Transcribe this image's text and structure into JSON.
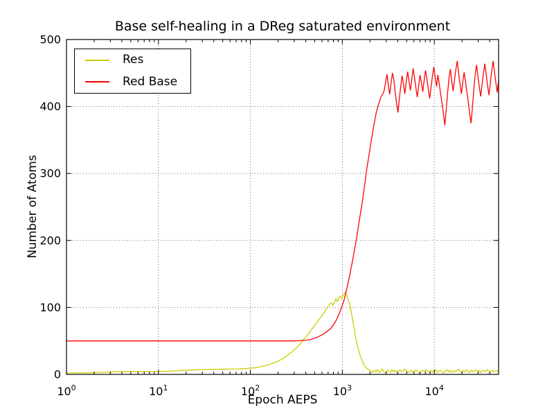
{
  "chart_data": {
    "type": "line",
    "title": "Base self-healing in a DReg saturated environment",
    "xlabel": "Epoch AEPS",
    "ylabel": "Number of Atoms",
    "x_scale": "log",
    "x_range": [
      1,
      50000
    ],
    "y_range": [
      0,
      500
    ],
    "grid": "dotted",
    "grid_color": "#555555",
    "axis_color": "#000000",
    "y_ticks": [
      0,
      100,
      200,
      300,
      400,
      500
    ],
    "y_tick_labels": [
      "0",
      "100",
      "200",
      "300",
      "400",
      "500"
    ],
    "x_ticks": [
      {
        "value": 1,
        "base": "10",
        "exp": "0"
      },
      {
        "value": 10,
        "base": "10",
        "exp": "1"
      },
      {
        "value": 100,
        "base": "10",
        "exp": "2"
      },
      {
        "value": 1000,
        "base": "10",
        "exp": "3"
      },
      {
        "value": 10000,
        "base": "10",
        "exp": "4"
      }
    ],
    "legend": {
      "position": "upper-left",
      "entries": [
        {
          "label": "Res",
          "color": "#cccc00"
        },
        {
          "label": "Red Base",
          "color": "#ff0000"
        }
      ]
    },
    "series": [
      {
        "name": "Res",
        "color": "#cccc00",
        "segments": [
          {
            "x": [
              1,
              1.5,
              2,
              2.6,
              3.3,
              4.2,
              5.5,
              7,
              9,
              12,
              15,
              19,
              24,
              30,
              38,
              47,
              58,
              72,
              88,
              100,
              115,
              130,
              150,
              170,
              195,
              220,
              250,
              285,
              320,
              360,
              400,
              440,
              480,
              520,
              560,
              600,
              640,
              680,
              720,
              760,
              790,
              820,
              850,
              880,
              910,
              950,
              990,
              1030,
              1070,
              1110,
              1150,
              1190,
              1230,
              1270,
              1310,
              1360,
              1410,
              1470,
              1530,
              1600,
              1680,
              1760,
              1850,
              1950
            ],
            "y": [
              2,
              2.2,
              2.6,
              3.2,
              3.8,
              4.1,
              4.2,
              4.2,
              4.3,
              4.6,
              5.2,
              6,
              6.8,
              7.4,
              7.6,
              7.7,
              7.9,
              8,
              8.6,
              9.2,
              10,
              11.5,
              13.5,
              16,
              19,
              23,
              28,
              34,
              40,
              48,
              56,
              63,
              70,
              76,
              82,
              88,
              93,
              99,
              104,
              107,
              103,
              108,
              113,
              109,
              114,
              117,
              113,
              119,
              122,
              118,
              112,
              107,
              98,
              88,
              76,
              64,
              52,
              41,
              32,
              24,
              17,
              12,
              9,
              7
            ]
          },
          {
            "xlog": [
              2050,
              50000
            ],
            "y": [
              5,
              3,
              6,
              4,
              7,
              3,
              5,
              8,
              4,
              2,
              6,
              5,
              3,
              7,
              4,
              6,
              3,
              5,
              7,
              4,
              6,
              8,
              5,
              3,
              4,
              6,
              3,
              5,
              7,
              4,
              2,
              5,
              6,
              4,
              7,
              5,
              3,
              6,
              4,
              5,
              7,
              3,
              5,
              6,
              4,
              2,
              5,
              7,
              4,
              6,
              3,
              5,
              4,
              6,
              8,
              5,
              3,
              6,
              4,
              7,
              5,
              3,
              6,
              4,
              5,
              7,
              4,
              6,
              3,
              5,
              6,
              4,
              7,
              5,
              3,
              6,
              4,
              5,
              6,
              4
            ]
          }
        ]
      },
      {
        "name": "Red Base",
        "color": "#ff0000",
        "segments": [
          {
            "x": [
              1,
              2,
              4,
              8,
              15,
              30,
              60,
              100,
              150,
              200,
              250,
              300,
              350,
              400,
              450,
              500,
              560,
              620,
              680,
              740,
              800,
              860,
              920,
              980,
              1040,
              1100,
              1160,
              1230,
              1300,
              1380,
              1460,
              1550,
              1650,
              1750,
              1850,
              1960,
              2080,
              2200,
              2330,
              2470,
              2620,
              2780
            ],
            "y": [
              50,
              50,
              50,
              50,
              50,
              50,
              50,
              50,
              50,
              50,
              50,
              50,
              50.5,
              51,
              52,
              54,
              57,
              60,
              64,
              68,
              74,
              81,
              90,
              100,
              110,
              124,
              138,
              155,
              172,
              192,
              212,
              235,
              258,
              283,
              308,
              330,
              352,
              372,
              390,
              403,
              414,
              420
            ]
          },
          {
            "xlog": [
              2850,
              50000
            ],
            "y": [
              424,
              436,
              448,
              432,
              418,
              435,
              450,
              440,
              421,
              405,
              391,
              412,
              430,
              446,
              433,
              419,
              437,
              452,
              438,
              424,
              440,
              457,
              443,
              428,
              414,
              431,
              447,
              435,
              422,
              439,
              454,
              441,
              426,
              412,
              429,
              445,
              459,
              444,
              430,
              447,
              433,
              418,
              404,
              388,
              372,
              395,
              420,
              442,
              456,
              438,
              423,
              440,
              455,
              468,
              450,
              434,
              419,
              436,
              451,
              437,
              422,
              407,
              390,
              375,
              398,
              425,
              447,
              462,
              445,
              429,
              415,
              433,
              449,
              464,
              448,
              431,
              417,
              435,
              453,
              468,
              452,
              436,
              421,
              439
            ]
          }
        ]
      }
    ]
  }
}
